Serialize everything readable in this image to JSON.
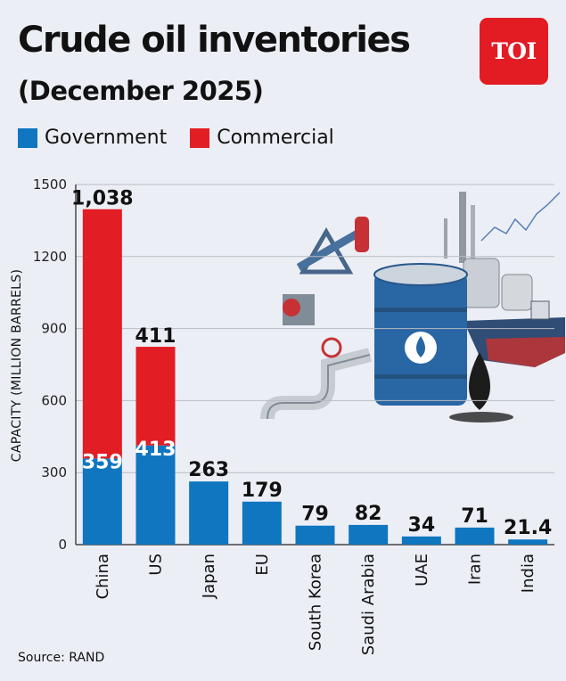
{
  "title": "Crude oil inventories",
  "subtitle": "(December 2025)",
  "logo_text": "TOI",
  "source": "Source: RAND",
  "colors": {
    "government": "#0f76bf",
    "commercial": "#e21d24",
    "background": "#eceef5",
    "logo": "#e31b23"
  },
  "chart_data": {
    "type": "bar",
    "stacked": true,
    "title": "Crude oil inventories",
    "subtitle": "(December 2025)",
    "xlabel": "",
    "ylabel": "CAPACITY (MILLION BARRELS)",
    "ylim": [
      0,
      1500
    ],
    "yticks": [
      0,
      300,
      600,
      900,
      1200,
      1500
    ],
    "grid": true,
    "legend_placement": "top-left",
    "categories": [
      "China",
      "US",
      "Japan",
      "EU",
      "South Korea",
      "Saudi Arabia",
      "UAE",
      "Iran",
      "India"
    ],
    "series": [
      {
        "name": "Government",
        "values": [
          359,
          413,
          263,
          179,
          79,
          82,
          34,
          71,
          21.4
        ],
        "labels": [
          "359",
          "413",
          "263",
          "179",
          "79",
          "82",
          "34",
          "71",
          "21.4"
        ]
      },
      {
        "name": "Commercial",
        "values": [
          1038,
          411,
          0,
          0,
          0,
          0,
          0,
          0,
          0
        ],
        "labels": [
          "1,038",
          "411",
          "",
          "",
          "",
          "",
          "",
          "",
          ""
        ]
      }
    ]
  }
}
